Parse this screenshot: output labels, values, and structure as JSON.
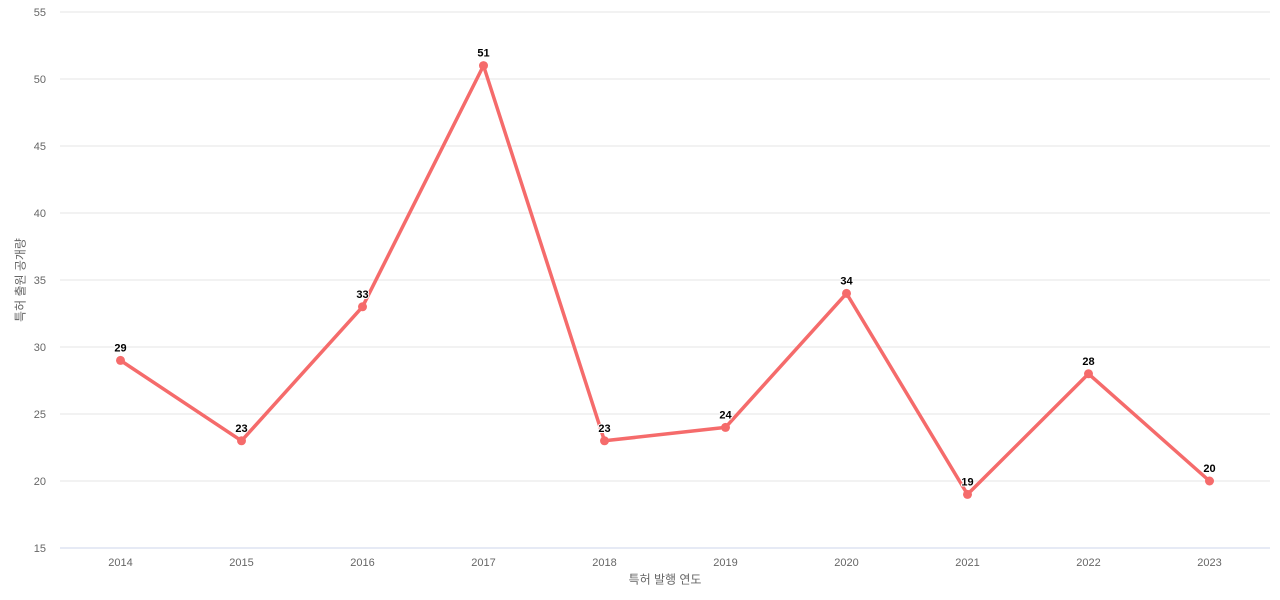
{
  "chart_data": {
    "type": "line",
    "title": "",
    "categories": [
      "2014",
      "2015",
      "2016",
      "2017",
      "2018",
      "2019",
      "2020",
      "2021",
      "2022",
      "2023"
    ],
    "series": [
      {
        "name": "특허 출원 공개량",
        "values": [
          29,
          23,
          33,
          51,
          23,
          24,
          34,
          19,
          28,
          20
        ]
      }
    ],
    "data_labels": [
      "29",
      "23",
      "33",
      "51",
      "23",
      "24",
      "34",
      "19",
      "28",
      "20"
    ],
    "xlabel": "특허 발행 연도",
    "ylabel": "특허 출원 공개량",
    "ylim": [
      15,
      55
    ],
    "ytick_step": 5,
    "ytick_labels": [
      "15",
      "20",
      "25",
      "30",
      "35",
      "40",
      "45",
      "50",
      "55"
    ],
    "grid": true,
    "legend": false,
    "colors": {
      "line": "#f56b6b",
      "marker": "#f56b6b",
      "gridline": "#e6e6e6",
      "axis_line": "#ccd6eb",
      "tick_label": "#666666",
      "axis_title": "#666666",
      "data_label": "#000000",
      "background": "#ffffff"
    }
  }
}
